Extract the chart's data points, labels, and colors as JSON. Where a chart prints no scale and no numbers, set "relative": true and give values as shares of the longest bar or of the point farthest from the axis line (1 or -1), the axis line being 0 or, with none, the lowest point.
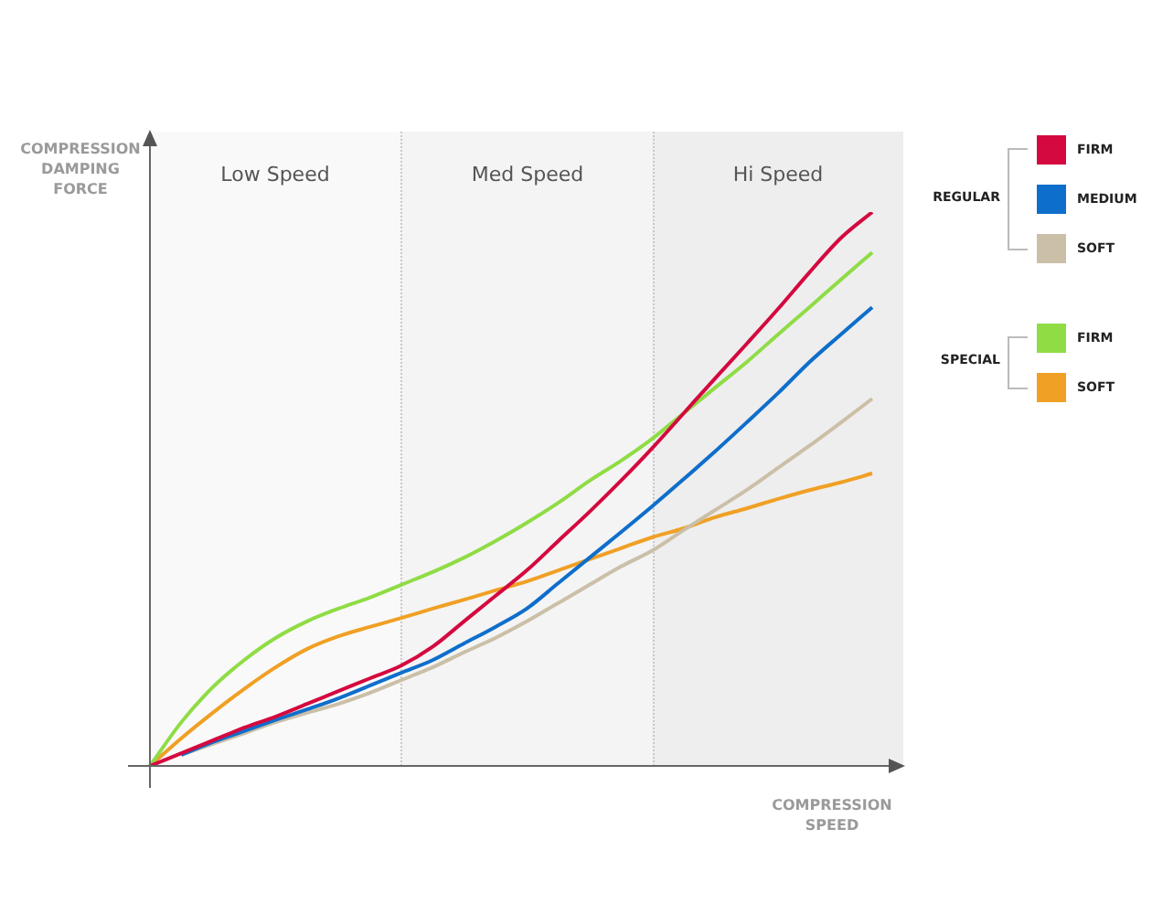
{
  "chart_data": {
    "type": "line",
    "relative": true,
    "xlabel": "COMPRESSION SPEED",
    "ylabel": "COMPRESSION DAMPING FORCE",
    "categories": [
      null,
      null,
      null,
      null,
      null,
      null,
      null,
      null,
      null,
      null,
      null,
      null,
      null,
      null,
      null,
      null,
      null,
      null,
      null,
      null,
      null,
      null,
      null,
      null
    ],
    "marker": "none",
    "line_style": "solid",
    "legend": "right",
    "annotations": [
      "Low Speed",
      "Med Speed",
      "Hi Speed",
      "REGULAR",
      "SPECIAL"
    ],
    "series": [
      {
        "name": "FIRM",
        "color": "#d4093f",
        "values": [
          0,
          0.023,
          0.046,
          0.069,
          0.089,
          0.112,
          0.135,
          0.158,
          0.181,
          0.215,
          0.261,
          0.307,
          0.353,
          0.406,
          0.459,
          0.515,
          0.574,
          0.637,
          0.7,
          0.762,
          0.825,
          0.891,
          0.953,
          1
        ]
      },
      {
        "name": "MEDIUM",
        "color": "#0e6ecb",
        "values": [
          null,
          0.02,
          0.043,
          0.063,
          0.083,
          0.102,
          0.122,
          0.145,
          0.168,
          0.191,
          0.221,
          0.251,
          0.284,
          0.33,
          0.376,
          0.422,
          0.469,
          0.518,
          0.568,
          0.62,
          0.673,
          0.729,
          0.779,
          0.828
        ]
      },
      {
        "name": "SOFT",
        "color": "#cbbfa8",
        "values": [
          null,
          0.02,
          0.04,
          0.059,
          0.079,
          0.096,
          0.112,
          0.132,
          0.155,
          0.178,
          0.205,
          0.231,
          0.261,
          0.294,
          0.327,
          0.36,
          0.389,
          0.426,
          0.462,
          0.498,
          0.538,
          0.578,
          0.62,
          0.663
        ]
      },
      {
        "name": "FIRM",
        "color": "#8fdc45",
        "values": [
          0,
          0.079,
          0.142,
          0.191,
          0.231,
          0.261,
          0.284,
          0.304,
          0.327,
          0.35,
          0.376,
          0.406,
          0.439,
          0.475,
          0.515,
          0.551,
          0.591,
          0.637,
          0.683,
          0.729,
          0.779,
          0.828,
          0.878,
          0.927
        ]
      },
      {
        "name": "SOFT",
        "color": "#f0a024",
        "values": [
          0,
          0.05,
          0.096,
          0.139,
          0.178,
          0.211,
          0.234,
          0.251,
          0.267,
          0.284,
          0.3,
          0.317,
          0.333,
          0.353,
          0.373,
          0.393,
          0.413,
          0.429,
          0.449,
          0.465,
          0.482,
          0.498,
          0.512,
          0.528
        ]
      }
    ]
  }
}
